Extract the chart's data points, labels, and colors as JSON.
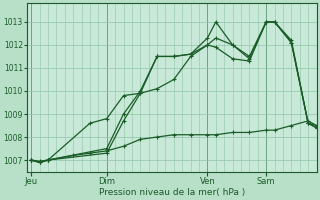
{
  "background_color": "#b8dfc8",
  "plot_bg_color": "#c8e8d8",
  "grid_color": "#90c4a8",
  "line_color": "#1a5c28",
  "ylim": [
    1006.5,
    1013.8
  ],
  "yticks": [
    1007,
    1008,
    1009,
    1010,
    1011,
    1012,
    1013
  ],
  "xlabel": "Pression niveau de la mer( hPa )",
  "xtick_labels": [
    "Jeu",
    "Dim",
    "Ven",
    "Sam"
  ],
  "xtick_positions": [
    0,
    9,
    21,
    28
  ],
  "xlim": [
    -0.5,
    34
  ],
  "vlines": [
    0,
    9,
    21,
    28
  ],
  "series": [
    {
      "x": [
        0,
        1,
        2,
        9,
        11,
        13,
        15,
        17,
        19,
        21,
        22,
        24,
        26,
        28,
        29,
        31,
        33,
        34
      ],
      "y": [
        1007.0,
        1006.9,
        1007.0,
        1007.3,
        1008.7,
        1009.9,
        1011.5,
        1011.5,
        1011.6,
        1012.3,
        1013.0,
        1012.0,
        1011.5,
        1013.0,
        1013.0,
        1012.2,
        1008.6,
        1008.5
      ]
    },
    {
      "x": [
        0,
        1,
        2,
        9,
        11,
        13,
        15,
        17,
        19,
        21,
        22,
        24,
        26,
        28,
        29,
        31,
        33,
        34
      ],
      "y": [
        1007.0,
        1006.9,
        1007.0,
        1007.5,
        1009.0,
        1010.0,
        1011.5,
        1011.5,
        1011.6,
        1012.0,
        1012.3,
        1012.0,
        1011.4,
        1013.0,
        1013.0,
        1012.1,
        1008.6,
        1008.4
      ]
    },
    {
      "x": [
        0,
        1,
        2,
        7,
        9,
        11,
        13,
        15,
        17,
        19,
        21,
        22,
        24,
        26,
        28,
        29,
        31,
        33,
        34
      ],
      "y": [
        1007.0,
        1006.9,
        1007.0,
        1008.6,
        1008.8,
        1009.8,
        1009.9,
        1010.1,
        1010.5,
        1011.5,
        1012.0,
        1011.9,
        1011.4,
        1011.3,
        1013.0,
        1013.0,
        1012.1,
        1008.6,
        1008.4
      ]
    },
    {
      "x": [
        0,
        1,
        2,
        5,
        7,
        9,
        11,
        13,
        15,
        17,
        19,
        21,
        22,
        24,
        26,
        28,
        29,
        31,
        33,
        34
      ],
      "y": [
        1007.0,
        1006.95,
        1007.0,
        1007.2,
        1007.3,
        1007.4,
        1007.6,
        1007.9,
        1008.0,
        1008.1,
        1008.1,
        1008.1,
        1008.1,
        1008.2,
        1008.2,
        1008.3,
        1008.3,
        1008.5,
        1008.7,
        1008.5
      ]
    }
  ]
}
